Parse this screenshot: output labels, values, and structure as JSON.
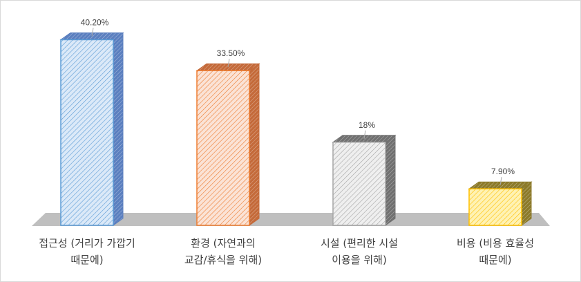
{
  "chart_data": {
    "type": "bar",
    "categories": [
      [
        "접근성 (거리가 가깝기",
        "때문에)"
      ],
      [
        "환경 (자연과의",
        "교감/휴식을 위해)"
      ],
      [
        "시설 (편리한 시설",
        "이용을 위해)"
      ],
      [
        "비용 (비용 효율성",
        "때문에)"
      ]
    ],
    "values": [
      40.2,
      33.5,
      18,
      7.9
    ],
    "value_labels": [
      "40.20%",
      "33.50%",
      "18%",
      "7.90%"
    ],
    "ylim": [
      0,
      45
    ],
    "grid": false,
    "legend": "none",
    "style": "3d-hatched",
    "colors": [
      {
        "fill": "#dbe9f8",
        "stroke": "#5b9bd5",
        "side": "#5b7fbf"
      },
      {
        "fill": "#fbe3d6",
        "stroke": "#ed7d31",
        "side": "#c46a3a"
      },
      {
        "fill": "#efefef",
        "stroke": "#a5a5a5",
        "side": "#707070"
      },
      {
        "fill": "#fff2b3",
        "stroke": "#ffc000",
        "side": "#8c7a2a"
      }
    ],
    "floor_color": "#bfbfbf"
  }
}
